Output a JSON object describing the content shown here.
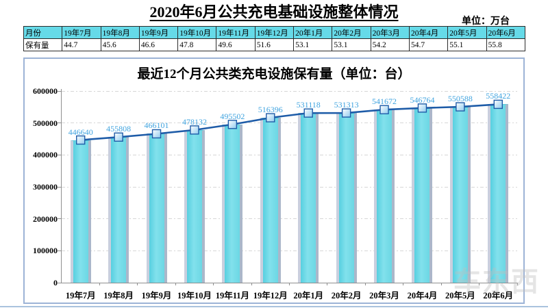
{
  "header": {
    "title": "2020年6月公共充电基础设施整体情况",
    "unit_label": "单位：万台"
  },
  "summary_table": {
    "corner_label": "月份",
    "row_label": "保有量",
    "months": [
      "19年7月",
      "19年8月",
      "19年9月",
      "19年10月",
      "19年11月",
      "19年12月",
      "20年1月",
      "20年2月",
      "20年3月",
      "20年4月",
      "20年5月",
      "20年6月"
    ],
    "values": [
      "44.7",
      "45.6",
      "46.6",
      "47.8",
      "49.6",
      "51.6",
      "53.1",
      "53.1",
      "54.2",
      "54.7",
      "55.1",
      "55.8"
    ]
  },
  "chart_data": {
    "type": "bar",
    "title": "最近12个月公共类充电设施保有量（单位：台）",
    "categories": [
      "19年7月",
      "19年8月",
      "19年9月",
      "19年10月",
      "19年11月",
      "19年12月",
      "20年1月",
      "20年2月",
      "20年3月",
      "20年4月",
      "20年5月",
      "20年6月"
    ],
    "values": [
      446640,
      455808,
      466101,
      478132,
      495502,
      516396,
      531118,
      531313,
      541672,
      546764,
      550588,
      558422
    ],
    "line_overlay_series": "same values drawn as line with square markers over bars",
    "xlabel": "",
    "ylabel": "",
    "ylim": [
      0,
      600000
    ],
    "ytick_step": 100000,
    "grid": "horizontal dashed",
    "legend": "none",
    "colors": {
      "bar_fill": "#6BD7E4",
      "bar_edge_left": "#C9CFDE",
      "bar_edge_right": "#ABB7CA",
      "line": "#1E5CA8",
      "marker_fill": "#BDE4F6",
      "data_label": "#3FA3DF",
      "table_header_bg": "#66DAE8",
      "panel_border": "#9CB3D6",
      "gridline": "#D6D6D6"
    }
  },
  "watermark": {
    "text": "车东西"
  }
}
